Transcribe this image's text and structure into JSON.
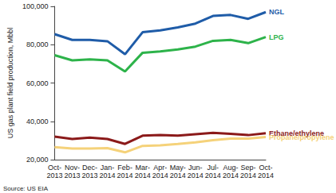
{
  "chart_data": {
    "type": "line",
    "y_label": "US gas plant field production, Mbbl",
    "source": "Source: US EIA",
    "categories": [
      "Oct-\n2013",
      "Nov-\n2013",
      "Dec-\n2013",
      "Jan-\n2014",
      "Feb-\n2014",
      "Mar-\n2014",
      "Apr-\n2014",
      "May-\n2014",
      "Jun-\n2014",
      "Jul-\n2014",
      "Aug-\n2014",
      "Sep-\n2014",
      "Oct-\n2014"
    ],
    "series": [
      {
        "name": "NGL",
        "color": "#1f5ca8",
        "values": [
          85500,
          82500,
          82500,
          81800,
          75000,
          86500,
          87500,
          89000,
          91000,
          95000,
          95500,
          93500,
          97000
        ]
      },
      {
        "name": "LPG",
        "color": "#2db34a",
        "values": [
          74500,
          71800,
          72300,
          71800,
          66000,
          75800,
          76500,
          77500,
          79000,
          82000,
          82500,
          80800,
          84000
        ]
      },
      {
        "name": "Ethane/ethylene",
        "color": "#8b1a1a",
        "values": [
          32000,
          30800,
          31500,
          30800,
          28200,
          32500,
          32800,
          32500,
          33300,
          34000,
          33500,
          32800,
          33800
        ]
      },
      {
        "name": "Propane/propylene",
        "color": "#f5d27a",
        "values": [
          26500,
          25800,
          25800,
          26000,
          23800,
          27200,
          27500,
          28200,
          29000,
          30200,
          31000,
          31000,
          31800
        ]
      }
    ],
    "ylim": [
      20000,
      100000
    ],
    "yticks": [
      {
        "value": 20000,
        "label": "20,000"
      },
      {
        "value": 40000,
        "label": "40,000"
      },
      {
        "value": 60000,
        "label": "60,000"
      },
      {
        "value": 80000,
        "label": "80,000"
      },
      {
        "value": 100000,
        "label": "100,000"
      }
    ],
    "grid": false,
    "legend": "right"
  }
}
